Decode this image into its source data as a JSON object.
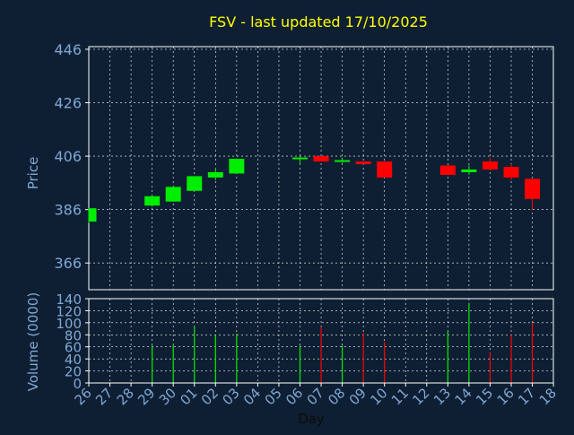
{
  "title": "FSV - last updated 17/10/2025",
  "colors": {
    "background": "#0f1f33",
    "title": "#ffff00",
    "axis_text": "#7fa7d4",
    "frame": "#ffffff",
    "grid": "#ffffff",
    "up": "#00ee00",
    "down": "#ff0000",
    "zero_line": "#ffffff"
  },
  "chart_data": [
    {
      "type": "candlestick",
      "title": "FSV - last updated 17/10/2025",
      "ylabel": "Price",
      "ylim": [
        356,
        447
      ],
      "yticks": [
        366,
        386,
        406,
        426,
        446
      ],
      "grid": true,
      "x": [
        "26",
        "27",
        "28",
        "29",
        "30",
        "01",
        "02",
        "03",
        "04",
        "05",
        "06",
        "07",
        "08",
        "09",
        "10",
        "11",
        "12",
        "13",
        "14",
        "15",
        "16",
        "17",
        "18"
      ],
      "candles": [
        {
          "day": "26",
          "open": 381.5,
          "close": 386.5,
          "high": 386.5,
          "low": 381.0
        },
        {
          "day": "29",
          "open": 387.5,
          "close": 391.0,
          "high": 391.0,
          "low": 387.0
        },
        {
          "day": "30",
          "open": 389.0,
          "close": 394.5,
          "high": 394.5,
          "low": 389.0
        },
        {
          "day": "01",
          "open": 393.0,
          "close": 398.5,
          "high": 398.5,
          "low": 393.0
        },
        {
          "day": "02",
          "open": 398.0,
          "close": 400.0,
          "high": 401.5,
          "low": 397.0
        },
        {
          "day": "03",
          "open": 399.5,
          "close": 405.0,
          "high": 405.0,
          "low": 399.5
        },
        {
          "day": "06",
          "open": 405.0,
          "close": 405.5,
          "high": 406.0,
          "low": 403.0
        },
        {
          "day": "07",
          "open": 406.0,
          "close": 404.0,
          "high": 406.0,
          "low": 404.0
        },
        {
          "day": "08",
          "open": 404.0,
          "close": 404.5,
          "high": 405.5,
          "low": 403.5
        },
        {
          "day": "09",
          "open": 404.0,
          "close": 403.0,
          "high": 404.0,
          "low": 403.0
        },
        {
          "day": "10",
          "open": 404.0,
          "close": 398.0,
          "high": 404.0,
          "low": 398.0
        },
        {
          "day": "13",
          "open": 402.5,
          "close": 399.0,
          "high": 402.5,
          "low": 399.0
        },
        {
          "day": "14",
          "open": 400.0,
          "close": 401.0,
          "high": 402.5,
          "low": 399.0
        },
        {
          "day": "15",
          "open": 404.0,
          "close": 401.0,
          "high": 405.5,
          "low": 400.5
        },
        {
          "day": "16",
          "open": 402.0,
          "close": 398.0,
          "high": 403.0,
          "low": 397.0
        },
        {
          "day": "17",
          "open": 397.5,
          "close": 390.0,
          "high": 397.5,
          "low": 386.0
        }
      ]
    },
    {
      "type": "bar",
      "ylabel": "Volume (0000)",
      "xlabel": "Day",
      "ylim": [
        0,
        140
      ],
      "yticks": [
        0,
        20,
        40,
        60,
        80,
        100,
        120,
        140
      ],
      "grid": true,
      "categories": [
        "26",
        "27",
        "28",
        "29",
        "30",
        "01",
        "02",
        "03",
        "04",
        "05",
        "06",
        "07",
        "08",
        "09",
        "10",
        "11",
        "12",
        "13",
        "14",
        "15",
        "16",
        "17",
        "18"
      ],
      "values": [
        0,
        0,
        0,
        62,
        63,
        93,
        80,
        82,
        0,
        0,
        62,
        93,
        62,
        83,
        68,
        0,
        0,
        85,
        133,
        50,
        80,
        100,
        0
      ],
      "direction": [
        "",
        "",
        "",
        "up",
        "up",
        "up",
        "up",
        "up",
        "",
        "",
        "up",
        "down",
        "up",
        "down",
        "down",
        "",
        "",
        "up",
        "up",
        "down",
        "down",
        "down",
        ""
      ]
    }
  ]
}
